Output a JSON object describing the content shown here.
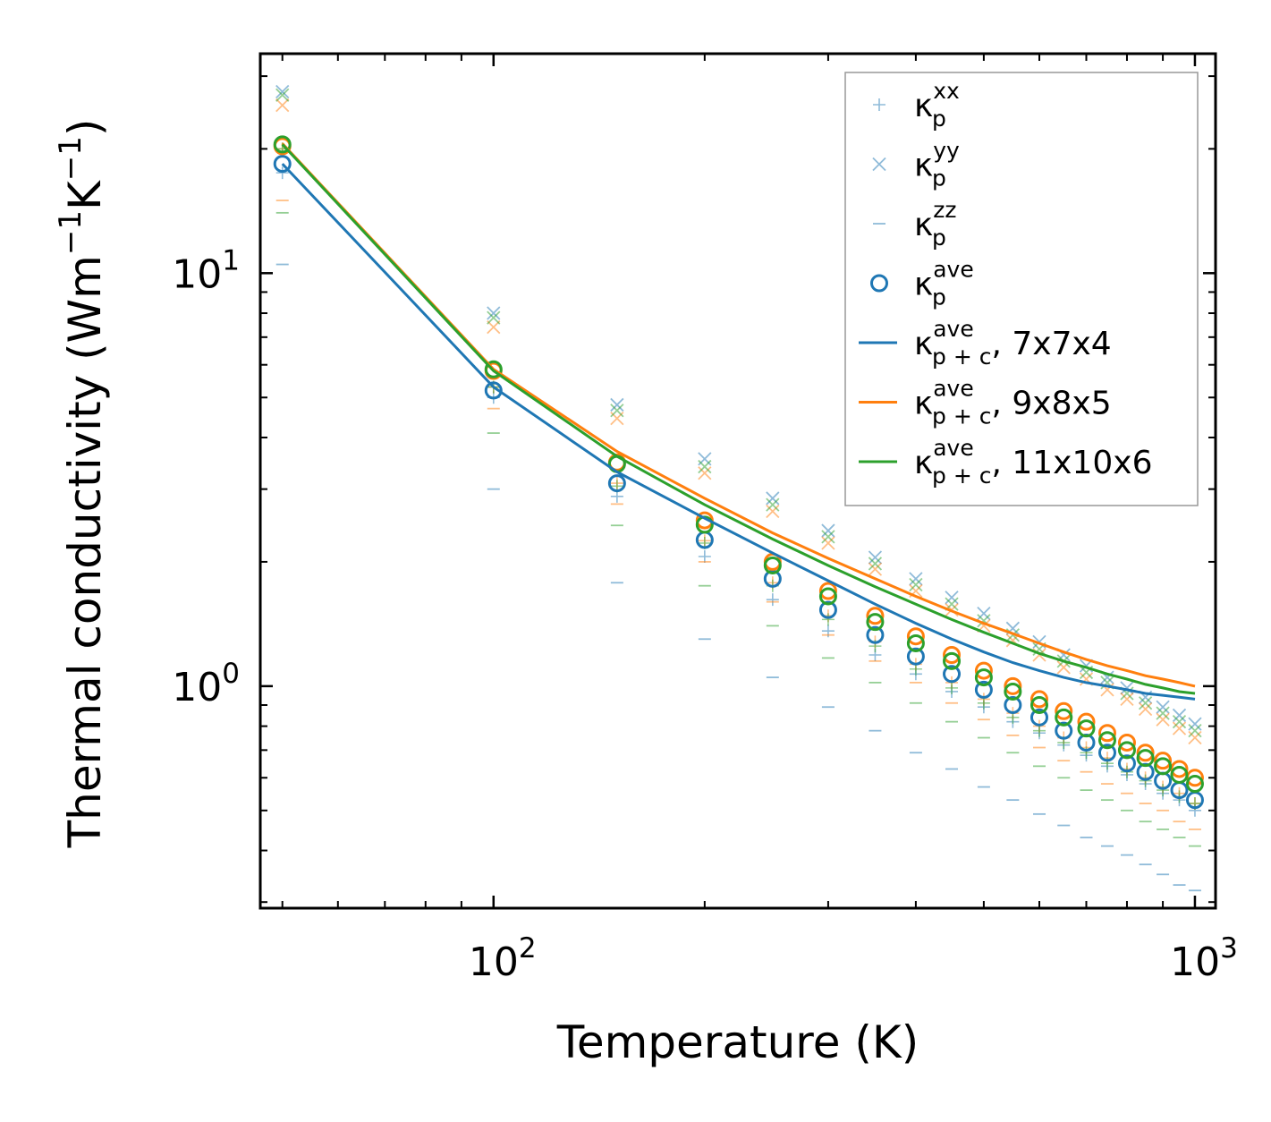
{
  "chart_data": {
    "type": "scatter",
    "title": "",
    "xlabel": "Temperature (K)",
    "ylabel": "Thermal conductivity (Wm−1K−1)",
    "ylabel_parts": {
      "main": "Thermal conductivity (Wm",
      "sup1": "−1",
      "mid": "K",
      "sup2": "−1",
      "end": ")"
    },
    "xscale": "log",
    "yscale": "log",
    "xlim": [
      46.5,
      1070
    ],
    "ylim": [
      0.29,
      34
    ],
    "x_ticks": [
      {
        "value": 100,
        "base": "10",
        "exp": "2"
      },
      {
        "value": 1000,
        "base": "10",
        "exp": "3"
      }
    ],
    "y_ticks": [
      {
        "value": 1,
        "base": "10",
        "exp": "0"
      },
      {
        "value": 10,
        "base": "10",
        "exp": "1"
      }
    ],
    "legend_position": "top-right",
    "legend": [
      {
        "kind": "plus",
        "sym": "κ",
        "sub": "p",
        "sup": "xx",
        "suffix": ""
      },
      {
        "kind": "cross",
        "sym": "κ",
        "sub": "p",
        "sup": "yy",
        "suffix": ""
      },
      {
        "kind": "dash",
        "sym": "κ",
        "sub": "p",
        "sup": "zz",
        "suffix": ""
      },
      {
        "kind": "circle",
        "sym": "κ",
        "sub": "p",
        "sup": "ave",
        "suffix": ""
      },
      {
        "kind": "line",
        "color": "#1f77b4",
        "sym": "κ",
        "sub": "p + c",
        "sup": "ave",
        "suffix": ", 7x7x4"
      },
      {
        "kind": "line",
        "color": "#ff7f0e",
        "sym": "κ",
        "sub": "p + c",
        "sup": "ave",
        "suffix": ", 9x8x5"
      },
      {
        "kind": "line",
        "color": "#2ca02c",
        "sym": "κ",
        "sub": "p + c",
        "sup": "ave",
        "suffix": ", 11x10x6"
      }
    ],
    "x": [
      50,
      100,
      150,
      200,
      250,
      300,
      350,
      400,
      450,
      500,
      550,
      600,
      650,
      700,
      750,
      800,
      850,
      900,
      950,
      1000
    ],
    "series": [
      {
        "name": "7x7x4",
        "color": "#1f77b4",
        "kxx": [
          17.5,
          5.0,
          2.88,
          2.06,
          1.62,
          1.36,
          1.19,
          1.07,
          0.97,
          0.89,
          0.82,
          0.77,
          0.72,
          0.68,
          0.64,
          0.61,
          0.58,
          0.55,
          0.53,
          0.5
        ],
        "kyy": [
          27.5,
          8.0,
          4.8,
          3.55,
          2.85,
          2.38,
          2.05,
          1.82,
          1.64,
          1.5,
          1.38,
          1.28,
          1.19,
          1.12,
          1.05,
          0.99,
          0.94,
          0.89,
          0.85,
          0.81
        ],
        "kzz": [
          10.5,
          3.0,
          1.78,
          1.3,
          1.05,
          0.89,
          0.78,
          0.69,
          0.63,
          0.57,
          0.53,
          0.49,
          0.46,
          0.43,
          0.41,
          0.39,
          0.37,
          0.35,
          0.33,
          0.32
        ],
        "kave": [
          18.4,
          5.2,
          3.1,
          2.26,
          1.82,
          1.53,
          1.33,
          1.18,
          1.07,
          0.98,
          0.9,
          0.84,
          0.78,
          0.73,
          0.69,
          0.65,
          0.62,
          0.59,
          0.56,
          0.53
        ],
        "kpc": [
          18.4,
          5.3,
          3.3,
          2.55,
          2.1,
          1.8,
          1.58,
          1.42,
          1.3,
          1.21,
          1.14,
          1.09,
          1.05,
          1.02,
          1.0,
          0.98,
          0.96,
          0.95,
          0.94,
          0.93
        ]
      },
      {
        "name": "9x8x5",
        "color": "#ff7f0e",
        "kxx": [
          20.0,
          5.3,
          3.1,
          2.25,
          1.78,
          1.48,
          1.28,
          1.13,
          1.02,
          0.93,
          0.86,
          0.8,
          0.75,
          0.71,
          0.67,
          0.63,
          0.6,
          0.57,
          0.55,
          0.52
        ],
        "kyy": [
          25.5,
          7.4,
          4.45,
          3.28,
          2.65,
          2.22,
          1.92,
          1.7,
          1.53,
          1.4,
          1.29,
          1.19,
          1.11,
          1.04,
          0.98,
          0.93,
          0.88,
          0.83,
          0.79,
          0.75
        ],
        "kzz": [
          15.0,
          4.7,
          2.76,
          2.0,
          1.6,
          1.33,
          1.15,
          1.02,
          0.91,
          0.83,
          0.76,
          0.71,
          0.66,
          0.62,
          0.58,
          0.55,
          0.52,
          0.5,
          0.47,
          0.45
        ],
        "kave": [
          20.3,
          5.8,
          3.48,
          2.52,
          2.0,
          1.7,
          1.48,
          1.32,
          1.19,
          1.09,
          1.0,
          0.93,
          0.87,
          0.82,
          0.77,
          0.73,
          0.69,
          0.66,
          0.63,
          0.6
        ],
        "kpc": [
          20.6,
          5.85,
          3.7,
          2.85,
          2.35,
          2.04,
          1.82,
          1.65,
          1.52,
          1.42,
          1.34,
          1.27,
          1.21,
          1.16,
          1.12,
          1.09,
          1.06,
          1.04,
          1.02,
          1.0
        ]
      },
      {
        "name": "11x10x6",
        "color": "#2ca02c",
        "kxx": [
          20.0,
          5.3,
          3.05,
          2.22,
          1.75,
          1.45,
          1.25,
          1.1,
          0.99,
          0.91,
          0.84,
          0.78,
          0.73,
          0.69,
          0.65,
          0.62,
          0.59,
          0.56,
          0.54,
          0.52
        ],
        "kyy": [
          27.0,
          7.8,
          4.65,
          3.4,
          2.75,
          2.3,
          1.98,
          1.76,
          1.58,
          1.44,
          1.33,
          1.23,
          1.15,
          1.08,
          1.02,
          0.96,
          0.91,
          0.86,
          0.82,
          0.78
        ],
        "kzz": [
          14.0,
          4.1,
          2.45,
          1.75,
          1.4,
          1.17,
          1.02,
          0.91,
          0.82,
          0.75,
          0.69,
          0.64,
          0.6,
          0.56,
          0.53,
          0.5,
          0.47,
          0.45,
          0.43,
          0.41
        ],
        "kave": [
          20.5,
          5.85,
          3.45,
          2.46,
          1.96,
          1.65,
          1.43,
          1.27,
          1.15,
          1.05,
          0.97,
          0.9,
          0.84,
          0.79,
          0.74,
          0.7,
          0.67,
          0.64,
          0.61,
          0.58
        ],
        "kpc": [
          20.5,
          5.8,
          3.6,
          2.75,
          2.27,
          1.96,
          1.74,
          1.58,
          1.45,
          1.35,
          1.27,
          1.2,
          1.15,
          1.11,
          1.07,
          1.04,
          1.01,
          0.99,
          0.97,
          0.96
        ]
      }
    ]
  }
}
